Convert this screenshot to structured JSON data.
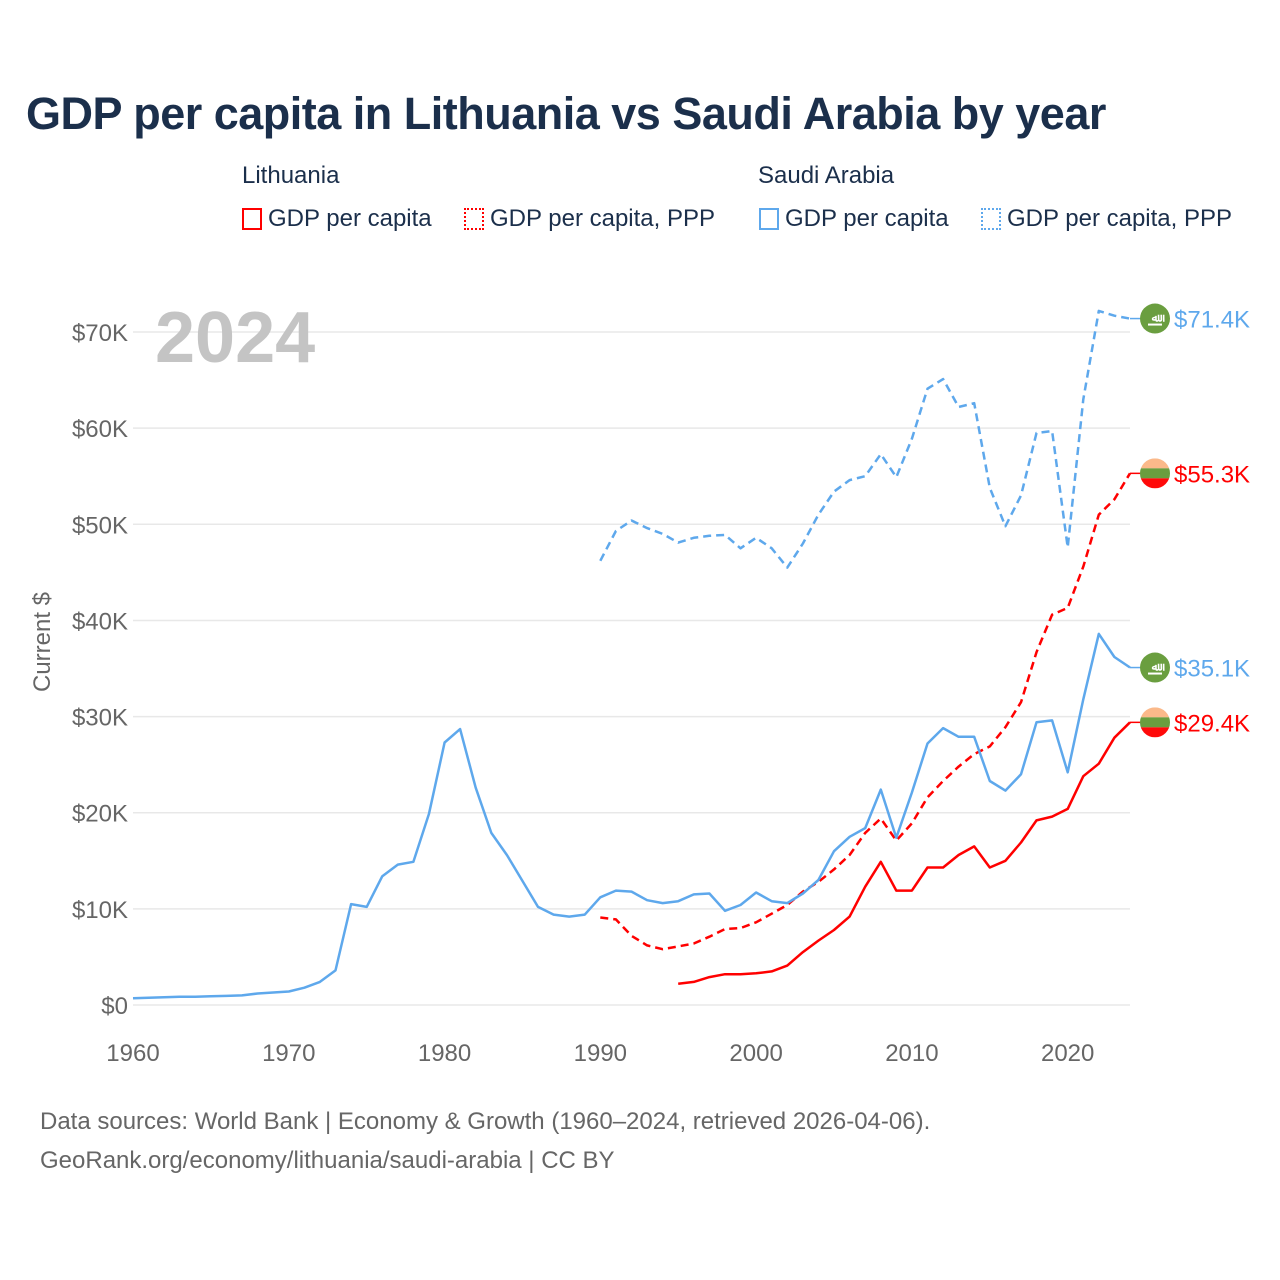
{
  "chart_data": {
    "type": "line",
    "title": "GDP per capita in Lithuania vs Saudi Arabia by year",
    "ylabel": "Current $",
    "xlabel": "",
    "year_watermark": "2024",
    "xlim": [
      1960,
      2024
    ],
    "ylim": [
      0,
      72000
    ],
    "x_ticks": [
      1960,
      1970,
      1980,
      1990,
      2000,
      2010,
      2020
    ],
    "x_tick_labels": [
      "1960",
      "1970",
      "1980",
      "1990",
      "2000",
      "2010",
      "2020"
    ],
    "y_ticks": [
      0,
      10000,
      20000,
      30000,
      40000,
      50000,
      60000,
      70000
    ],
    "y_tick_labels": [
      "$0",
      "$10K",
      "$20K",
      "$30K",
      "$40K",
      "$50K",
      "$60K",
      "$70K"
    ],
    "grid": true,
    "legend": {
      "placement": "top",
      "groups": [
        {
          "country": "Lithuania",
          "items": [
            "GDP per capita",
            "GDP per capita, PPP"
          ]
        },
        {
          "country": "Saudi Arabia",
          "items": [
            "GDP per capita",
            "GDP per capita, PPP"
          ]
        }
      ]
    },
    "series": [
      {
        "name": "Saudi Arabia GDP per capita, PPP",
        "country": "Saudi Arabia",
        "flag": "saudi-arabia",
        "color": "#5ea8ec",
        "dash": true,
        "end_label": "$71.4K",
        "start": 1990,
        "values": [
          46.2,
          49.3,
          50.4,
          49.6,
          49.0,
          48.1,
          48.6,
          48.8,
          48.9,
          47.5,
          48.6,
          47.5,
          45.5,
          48.0,
          51.0,
          53.4,
          54.6,
          55.0,
          57.3,
          54.9,
          58.9,
          64.1,
          65.1,
          62.2,
          62.6,
          53.8,
          49.8,
          53.0,
          59.5,
          59.7,
          47.6,
          63.0,
          72.2,
          71.7,
          71.4
        ]
      },
      {
        "name": "Lithuania GDP per capita, PPP",
        "country": "Lithuania",
        "flag": "lithuania",
        "color": "#ff0000",
        "dash": true,
        "end_label": "$55.3K",
        "start": 1990,
        "values": [
          9.1,
          8.9,
          7.2,
          6.2,
          5.8,
          6.1,
          6.4,
          7.1,
          7.9,
          8.0,
          8.6,
          9.5,
          10.4,
          11.8,
          12.8,
          14.1,
          15.6,
          17.9,
          19.4,
          17.1,
          18.9,
          21.6,
          23.3,
          24.8,
          26.1,
          26.9,
          28.9,
          31.5,
          36.7,
          40.6,
          41.3,
          45.6,
          51.0,
          52.6,
          55.3
        ]
      },
      {
        "name": "Saudi Arabia GDP per capita",
        "country": "Saudi Arabia",
        "flag": "saudi-arabia",
        "color": "#5ea8ec",
        "dash": false,
        "end_label": "$35.1K",
        "start": 1960,
        "values": [
          0.7,
          0.75,
          0.8,
          0.85,
          0.85,
          0.9,
          0.95,
          1.0,
          1.2,
          1.3,
          1.4,
          1.8,
          2.4,
          3.6,
          10.5,
          10.2,
          13.4,
          14.6,
          14.9,
          19.9,
          27.3,
          28.7,
          22.6,
          17.9,
          15.6,
          12.9,
          10.2,
          9.4,
          9.2,
          9.4,
          11.2,
          11.9,
          11.8,
          10.9,
          10.6,
          10.8,
          11.5,
          11.6,
          9.8,
          10.4,
          11.7,
          10.8,
          10.6,
          11.6,
          13.0,
          16.0,
          17.5,
          18.4,
          22.4,
          17.4,
          22.1,
          27.2,
          28.8,
          27.9,
          27.9,
          23.3,
          22.3,
          24.0,
          29.4,
          29.6,
          24.2,
          31.8,
          38.6,
          36.2,
          35.1
        ]
      },
      {
        "name": "Lithuania GDP per capita",
        "country": "Lithuania",
        "flag": "lithuania",
        "color": "#ff0000",
        "dash": false,
        "end_label": "$29.4K",
        "start": 1995,
        "values": [
          2.2,
          2.4,
          2.9,
          3.2,
          3.2,
          3.3,
          3.5,
          4.1,
          5.5,
          6.7,
          7.8,
          9.2,
          12.3,
          14.9,
          11.9,
          11.9,
          14.3,
          14.3,
          15.6,
          16.5,
          14.3,
          15.0,
          16.9,
          19.2,
          19.6,
          20.4,
          23.8,
          25.1,
          27.8,
          29.4
        ]
      }
    ],
    "value_units": "thousands of current US$"
  },
  "colors": {
    "lithuania": "#ff0000",
    "saudi_arabia": "#5ea8ec",
    "title": "#1b2f4b"
  },
  "source": {
    "line1": "Data sources: World Bank | Economy & Growth (1960–2024, retrieved 2026-04-06).",
    "line2": "GeoRank.org/economy/lithuania/saudi-arabia | CC BY"
  }
}
